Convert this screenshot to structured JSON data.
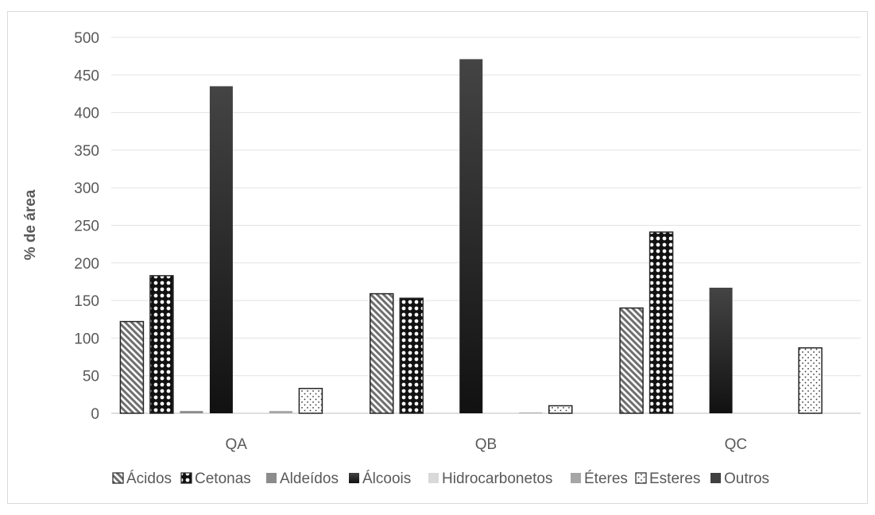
{
  "chart_data": {
    "type": "bar",
    "title": "",
    "xlabel": "",
    "ylabel": "% de área",
    "ylim": [
      0,
      500
    ],
    "yticks": [
      0,
      50,
      100,
      150,
      200,
      250,
      300,
      350,
      400,
      450,
      500
    ],
    "categories": [
      "QA",
      "QB",
      "QC"
    ],
    "grid": true,
    "legend_position": "bottom",
    "series": [
      {
        "name": "Ácidos",
        "values": [
          122,
          159,
          140
        ],
        "pattern": "diagonal",
        "color": "#7f7f7f"
      },
      {
        "name": "Cetonas",
        "values": [
          183,
          153,
          241
        ],
        "pattern": "circles",
        "color": "#1a1a1a"
      },
      {
        "name": "Aldeídos",
        "values": [
          3,
          0,
          0
        ],
        "pattern": "solid",
        "color": "#8c8c8c"
      },
      {
        "name": "Álcoois",
        "values": [
          435,
          471,
          167
        ],
        "pattern": "gradient",
        "color": "#262626"
      },
      {
        "name": "Hidrocarbonetos",
        "values": [
          0,
          0,
          0
        ],
        "pattern": "solid",
        "color": "#d9d9d9"
      },
      {
        "name": "Éteres",
        "values": [
          3,
          1,
          0
        ],
        "pattern": "solid",
        "color": "#a6a6a6"
      },
      {
        "name": "Esteres",
        "values": [
          33,
          10,
          87
        ],
        "pattern": "dots",
        "color": "#ffffff"
      },
      {
        "name": "Outros",
        "values": [
          0,
          0,
          0
        ],
        "pattern": "solid",
        "color": "#404040"
      }
    ]
  }
}
